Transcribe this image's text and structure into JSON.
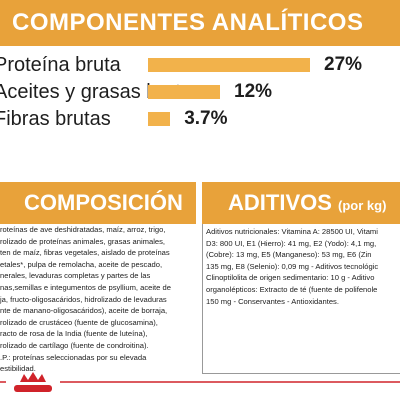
{
  "header": {
    "title": "COMPONENTES ANALÍTICOS"
  },
  "analytics": [
    {
      "label": "Proteína bruta",
      "value": 27,
      "value_label": "27%"
    },
    {
      "label": "Aceites y grasas brutos",
      "value": 12,
      "value_label": "12%"
    },
    {
      "label": "Fibras brutas",
      "value": 3.7,
      "value_label": "3.7%"
    }
  ],
  "composition": {
    "title": "COMPOSICIÓN",
    "lines": [
      "roteínas de ave deshidratadas, maíz, arroz, trigo,",
      "rolizado de proteínas animales, grasas animales,",
      "ten de maíz, fibras vegetales, aislado de proteínas",
      "etales*, pulpa de remolacha, aceite de pescado,",
      "nerales, levaduras completas y partes de las",
      "nas,semillas e integumentos de psyllium, aceite de",
      "ja, fructo-oligosacáridos, hidrolizado de levaduras",
      "nte de manano-oligosacáridos), aceite de borraja,",
      "rolizado de crustáceo (fuente de glucosamina),",
      "racto de rosa de la India (fuente de luteína),",
      "rolizado de cartílago (fuente de condroitina).",
      ".P.: proteínas seleccionadas por su elevada",
      "estibilidad."
    ]
  },
  "additives": {
    "title": "ADITIVOS",
    "unit": "(por kg)",
    "lines": [
      "Aditivos nutricionales: Vitamina A: 28500 UI, Vitami",
      "D3: 800 UI, E1 (Hierro): 41 mg, E2 (Yodo): 4,1 mg,",
      "(Cobre): 13 mg, E5 (Manganeso): 53 mg, E6 (Zin",
      "135 mg, E8 (Selenio): 0,09 mg - Aditivos tecnológic",
      "Clinoptilolita de origen sedimentario: 10 g - Aditivo",
      "organolépticos: Extracto de té (fuente de polifenole",
      "150 mg - Conservantes - Antioxidantes."
    ]
  }
}
